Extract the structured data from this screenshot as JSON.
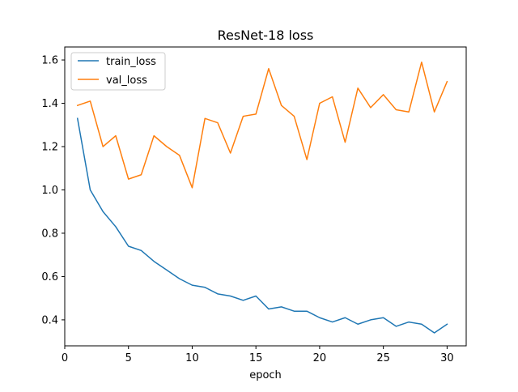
{
  "chart_data": {
    "type": "line",
    "title": "ResNet-18 loss",
    "xlabel": "epoch",
    "ylabel": "",
    "xlim": [
      0,
      31.5
    ],
    "ylim": [
      0.28,
      1.66
    ],
    "xticks": [
      0,
      5,
      10,
      15,
      20,
      25,
      30
    ],
    "yticks": [
      0.4,
      0.6,
      0.8,
      1.0,
      1.2,
      1.4,
      1.6
    ],
    "xtick_labels": [
      "0",
      "5",
      "10",
      "15",
      "20",
      "25",
      "30"
    ],
    "ytick_labels": [
      "0.4",
      "0.6",
      "0.8",
      "1.0",
      "1.2",
      "1.4",
      "1.6"
    ],
    "grid": false,
    "legend_position": "top-left",
    "x": [
      1,
      2,
      3,
      4,
      5,
      6,
      7,
      8,
      9,
      10,
      11,
      12,
      13,
      14,
      15,
      16,
      17,
      18,
      19,
      20,
      21,
      22,
      23,
      24,
      25,
      26,
      27,
      28,
      29,
      30
    ],
    "series": [
      {
        "name": "train_loss",
        "color": "#1f77b4",
        "values": [
          1.33,
          1.0,
          0.9,
          0.83,
          0.74,
          0.72,
          0.67,
          0.63,
          0.59,
          0.56,
          0.55,
          0.52,
          0.51,
          0.49,
          0.51,
          0.45,
          0.46,
          0.44,
          0.44,
          0.41,
          0.39,
          0.41,
          0.38,
          0.4,
          0.41,
          0.37,
          0.39,
          0.38,
          0.34,
          0.38
        ]
      },
      {
        "name": "val_loss",
        "color": "#ff7f0e",
        "values": [
          1.39,
          1.41,
          1.2,
          1.25,
          1.05,
          1.07,
          1.25,
          1.2,
          1.16,
          1.01,
          1.33,
          1.31,
          1.17,
          1.34,
          1.35,
          1.56,
          1.39,
          1.34,
          1.14,
          1.4,
          1.43,
          1.22,
          1.47,
          1.38,
          1.44,
          1.37,
          1.36,
          1.59,
          1.36,
          1.5
        ]
      }
    ]
  }
}
